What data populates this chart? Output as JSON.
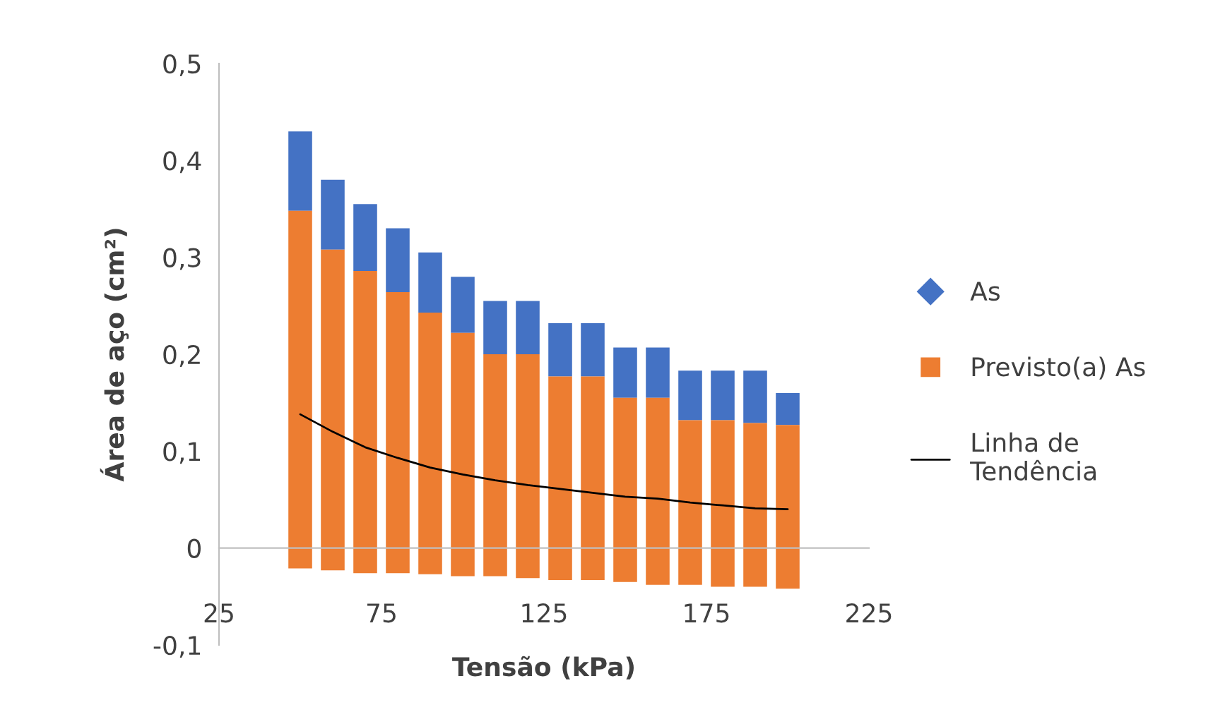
{
  "chart_data": {
    "type": "bar",
    "xlabel": "Tensão (kPa)",
    "ylabel": "Área de aço (cm²)",
    "x": [
      50,
      60,
      70,
      80,
      90,
      100,
      110,
      120,
      130,
      140,
      150,
      160,
      170,
      180,
      190,
      200
    ],
    "series": [
      {
        "name": "As",
        "color": "#4472c4",
        "marker": "diamond",
        "base": [
          0.348,
          0.308,
          0.286,
          0.264,
          0.243,
          0.222,
          0.2,
          0.2,
          0.177,
          0.177,
          0.155,
          0.155,
          0.132,
          0.132,
          0.129,
          0.127
        ],
        "values": [
          0.082,
          0.072,
          0.069,
          0.066,
          0.062,
          0.058,
          0.055,
          0.055,
          0.055,
          0.055,
          0.052,
          0.052,
          0.051,
          0.051,
          0.054,
          0.033
        ]
      },
      {
        "name": "Previsto(a) As",
        "color": "#ed7d31",
        "marker": "square",
        "base": [
          -0.021,
          -0.023,
          -0.026,
          -0.026,
          -0.027,
          -0.029,
          -0.029,
          -0.031,
          -0.033,
          -0.033,
          -0.035,
          -0.038,
          -0.038,
          -0.04,
          -0.04,
          -0.042
        ],
        "values": [
          0.369,
          0.331,
          0.312,
          0.29,
          0.27,
          0.251,
          0.229,
          0.231,
          0.21,
          0.21,
          0.19,
          0.193,
          0.17,
          0.172,
          0.169,
          0.169
        ]
      },
      {
        "name": "Linha de Tendência",
        "type": "line",
        "color": "#000000",
        "values": [
          0.138,
          0.12,
          0.104,
          0.093,
          0.083,
          0.076,
          0.07,
          0.065,
          0.061,
          0.057,
          0.053,
          0.051,
          0.047,
          0.044,
          0.041,
          0.04
        ]
      }
    ],
    "xlim": [
      25,
      225
    ],
    "xticks": [
      25,
      75,
      125,
      175,
      225
    ],
    "ylim": [
      -0.1,
      0.5
    ],
    "yticks": [
      {
        "value": -0.1,
        "label": "-0,1"
      },
      0,
      {
        "value": 0.1,
        "label": "0,1"
      },
      {
        "value": 0.2,
        "label": "0,2"
      },
      {
        "value": 0.3,
        "label": "0,3"
      },
      {
        "value": 0.4,
        "label": "0,4"
      },
      {
        "value": 0.5,
        "label": "0,5"
      }
    ],
    "grid": false,
    "legend": "right"
  }
}
